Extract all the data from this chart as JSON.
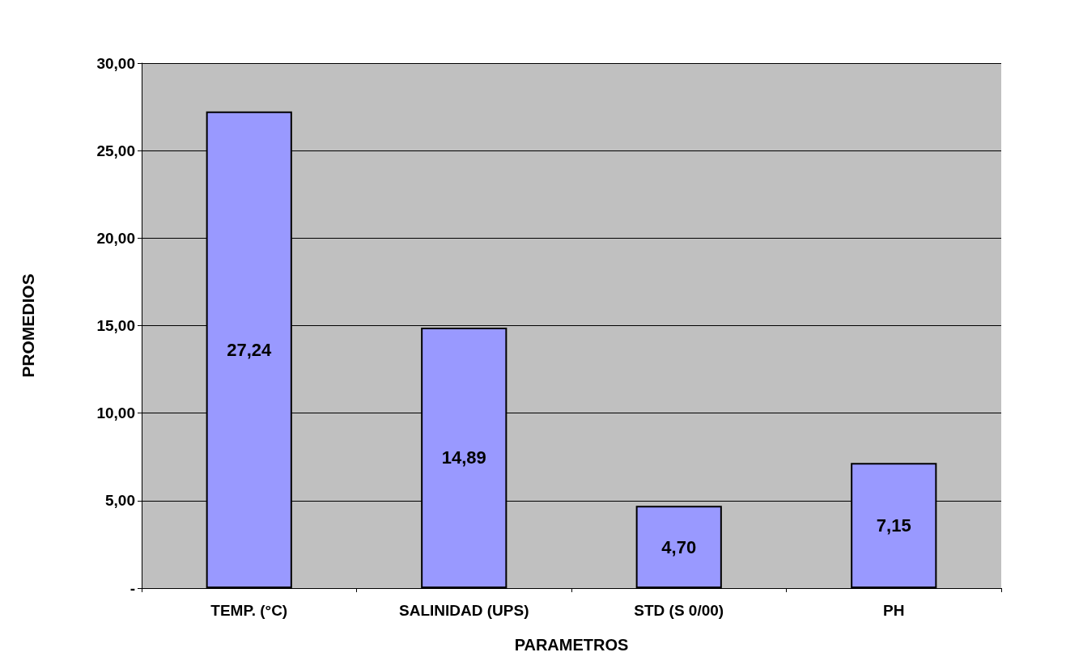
{
  "chart_data": {
    "type": "bar",
    "xlabel": "PARAMETROS",
    "ylabel": "PROMEDIOS",
    "categories": [
      "TEMP. (°C)",
      "SALINIDAD (UPS)",
      "STD (S 0/00)",
      "PH"
    ],
    "values": [
      27.24,
      14.89,
      4.7,
      7.15
    ],
    "value_labels": [
      "27,24",
      "14,89",
      "4,70",
      "7,15"
    ],
    "color": "#9999ff",
    "ylim": [
      0,
      30
    ],
    "yticks": [
      {
        "value": 0,
        "label": "-"
      },
      {
        "value": 5,
        "label": "5,00"
      },
      {
        "value": 10,
        "label": "10,00"
      },
      {
        "value": 15,
        "label": "15,00"
      },
      {
        "value": 20,
        "label": "20,00"
      },
      {
        "value": 25,
        "label": "25,00"
      },
      {
        "value": 30,
        "label": "30,00"
      }
    ],
    "grid": true
  }
}
